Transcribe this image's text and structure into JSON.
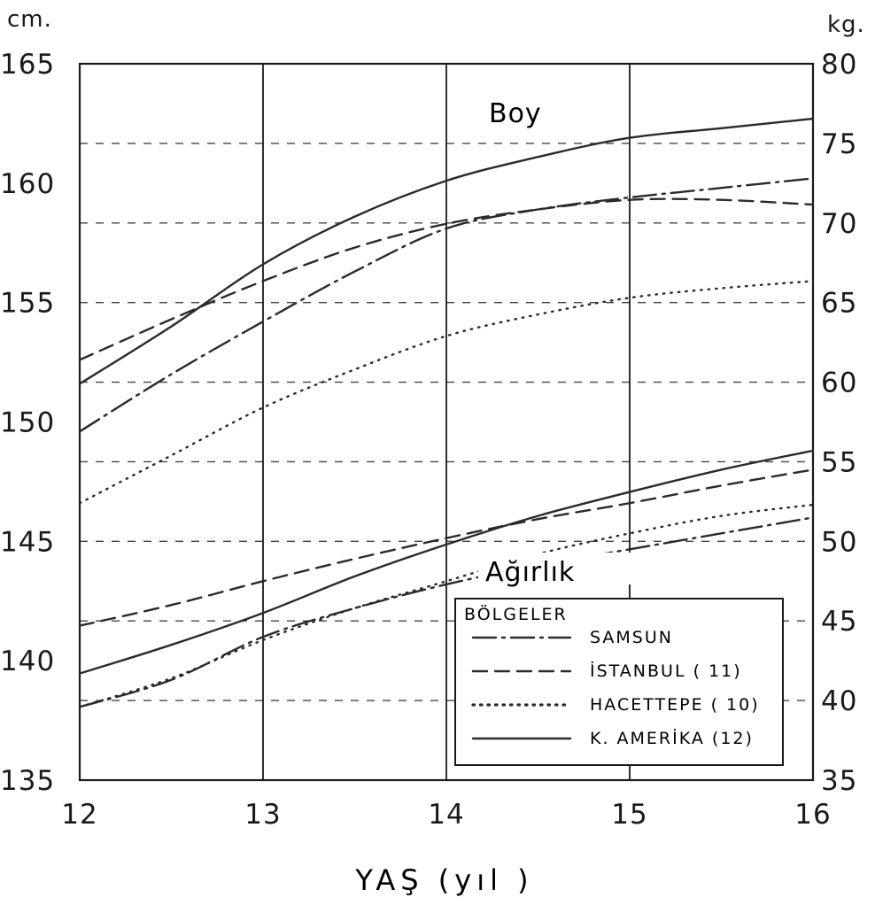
{
  "chart_data": {
    "type": "line",
    "xlabel": "YAŞ (yıl )",
    "ylabel_left": "cm.",
    "ylabel_right": "kg.",
    "xlim": [
      12,
      16
    ],
    "ylim_left": [
      135,
      165
    ],
    "ylim_right": [
      35,
      80
    ],
    "x_ticks": [
      "12",
      "13",
      "14",
      "15",
      "16"
    ],
    "y_left_ticks": [
      "135",
      "140",
      "145",
      "150",
      "155",
      "160",
      "165"
    ],
    "y_right_ticks": [
      "35",
      "40",
      "45",
      "50",
      "55",
      "60",
      "65",
      "70",
      "75",
      "80"
    ],
    "grid": "vertical lines at 13, 14, 15; dashed horizontal reference lines",
    "annotations": {
      "upper": "Boy",
      "lower": "Ağırlık"
    },
    "legend": {
      "title": "BÖLGELER",
      "position": "bottom-right",
      "entries": [
        {
          "label": "SAMSUN",
          "dash": "dashdot"
        },
        {
          "label": "İSTANBUL  ( 11)",
          "dash": "dashed"
        },
        {
          "label": "HACETTEPE ( 10)",
          "dash": "dotted"
        },
        {
          "label": "K. AMERİKA  (12)",
          "dash": "solid"
        }
      ]
    },
    "series": [
      {
        "name": "SAMSUN",
        "dash": "dashdot",
        "group": "Boy",
        "axis": "cm.",
        "x": [
          12,
          12.5,
          13,
          13.5,
          14,
          14.5,
          15,
          15.5,
          16
        ],
        "y": [
          149.6,
          152.0,
          154.2,
          156.3,
          158.1,
          158.9,
          159.4,
          159.8,
          160.2
        ]
      },
      {
        "name": "İSTANBUL",
        "dash": "dashed",
        "group": "Boy",
        "axis": "cm.",
        "x": [
          12,
          12.5,
          13,
          13.5,
          14,
          14.5,
          15,
          15.5,
          16
        ],
        "y": [
          152.6,
          154.3,
          155.9,
          157.3,
          158.3,
          158.9,
          159.3,
          159.3,
          159.1
        ]
      },
      {
        "name": "HACETTEPE",
        "dash": "dotted",
        "group": "Boy",
        "axis": "cm.",
        "x": [
          12,
          12.5,
          13,
          13.5,
          14,
          14.5,
          15,
          15.5,
          16
        ],
        "y": [
          146.6,
          148.6,
          150.6,
          152.2,
          153.6,
          154.5,
          155.2,
          155.6,
          155.9
        ]
      },
      {
        "name": "K. AMERİKA",
        "dash": "solid",
        "group": "Boy",
        "axis": "cm.",
        "x": [
          12,
          12.5,
          13,
          13.5,
          14,
          14.5,
          15,
          15.5,
          16
        ],
        "y": [
          151.6,
          154.0,
          156.6,
          158.6,
          160.1,
          161.1,
          161.9,
          162.3,
          162.7
        ]
      },
      {
        "name": "SAMSUN",
        "dash": "dashdot",
        "group": "Ağırlık",
        "axis": "kg.",
        "x": [
          12,
          12.5,
          13,
          13.5,
          14,
          14.5,
          15,
          15.5,
          16
        ],
        "y": [
          39.6,
          41.3,
          44.0,
          45.8,
          47.3,
          48.5,
          49.5,
          50.5,
          51.5
        ]
      },
      {
        "name": "İSTANBUL",
        "dash": "dashed",
        "group": "Ağırlık",
        "axis": "kg.",
        "x": [
          12,
          12.5,
          13,
          13.5,
          14,
          14.5,
          15,
          15.5,
          16
        ],
        "y": [
          44.7,
          46.0,
          47.5,
          48.9,
          50.2,
          51.4,
          52.4,
          53.5,
          54.5
        ]
      },
      {
        "name": "HACETTEPE",
        "dash": "dotted",
        "group": "Ağırlık",
        "axis": "kg.",
        "x": [
          12,
          12.5,
          13,
          13.5,
          14,
          14.5,
          15,
          15.5,
          16
        ],
        "y": [
          39.6,
          41.4,
          43.8,
          45.8,
          47.5,
          49.2,
          50.5,
          51.6,
          52.3
        ]
      },
      {
        "name": "K. AMERİKA",
        "dash": "solid",
        "group": "Ağırlık",
        "axis": "kg.",
        "x": [
          12,
          12.5,
          13,
          13.5,
          14,
          14.5,
          15,
          15.5,
          16
        ],
        "y": [
          41.7,
          43.5,
          45.5,
          47.8,
          49.8,
          51.6,
          53.1,
          54.5,
          55.7
        ]
      }
    ]
  }
}
